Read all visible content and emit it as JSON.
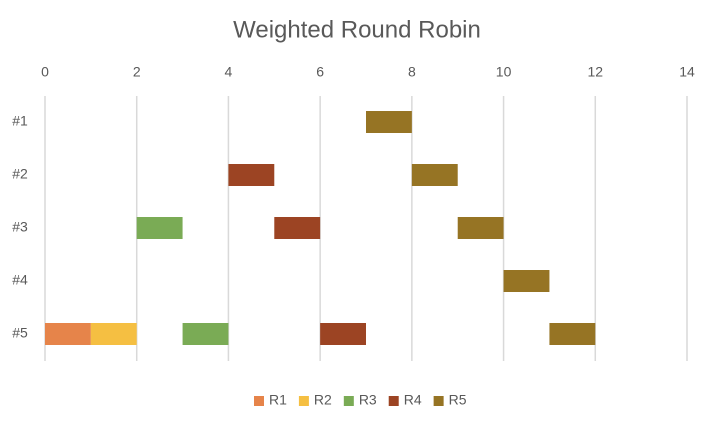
{
  "chart_data": {
    "type": "gantt",
    "title": "Weighted Round Robin",
    "categories": [
      "#1",
      "#2",
      "#3",
      "#4",
      "#5"
    ],
    "xlim": [
      0,
      14
    ],
    "xticks": [
      0,
      2,
      4,
      6,
      8,
      10,
      12,
      14
    ],
    "grid": true,
    "legend": "bottom",
    "series": [
      {
        "name": "R1",
        "color": "#e6844a",
        "tasks": [
          {
            "category": "#5",
            "start": 0,
            "end": 1
          }
        ]
      },
      {
        "name": "R2",
        "color": "#f5bf42",
        "tasks": [
          {
            "category": "#5",
            "start": 1,
            "end": 2
          }
        ]
      },
      {
        "name": "R3",
        "color": "#7aab55",
        "tasks": [
          {
            "category": "#3",
            "start": 2,
            "end": 3
          },
          {
            "category": "#5",
            "start": 3,
            "end": 4
          }
        ]
      },
      {
        "name": "R4",
        "color": "#9c4423",
        "tasks": [
          {
            "category": "#2",
            "start": 4,
            "end": 5
          },
          {
            "category": "#3",
            "start": 5,
            "end": 6
          },
          {
            "category": "#5",
            "start": 6,
            "end": 7
          }
        ]
      },
      {
        "name": "R5",
        "color": "#967424",
        "tasks": [
          {
            "category": "#1",
            "start": 7,
            "end": 8
          },
          {
            "category": "#2",
            "start": 8,
            "end": 9
          },
          {
            "category": "#3",
            "start": 9,
            "end": 10
          },
          {
            "category": "#4",
            "start": 10,
            "end": 11
          },
          {
            "category": "#5",
            "start": 11,
            "end": 12
          }
        ]
      }
    ]
  }
}
